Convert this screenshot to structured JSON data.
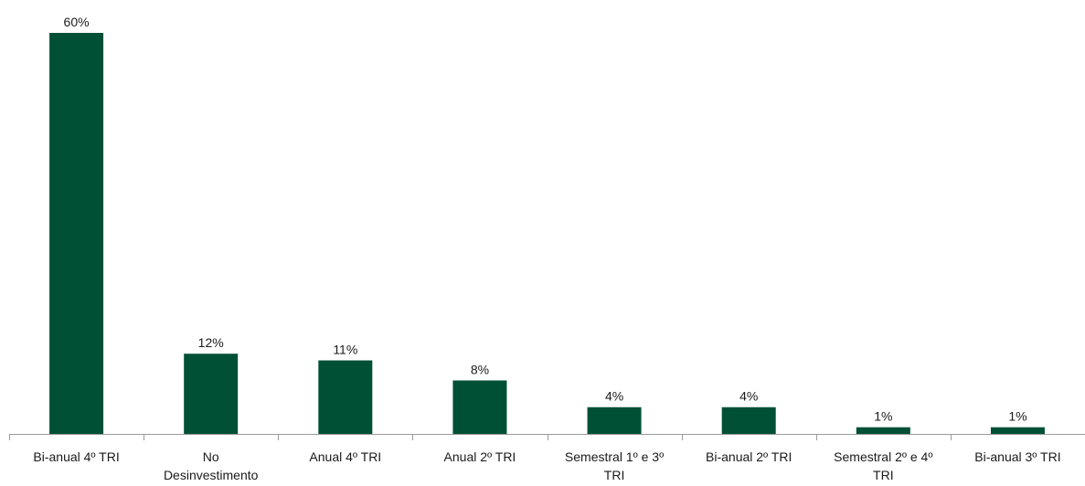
{
  "chart_data": {
    "type": "bar",
    "categories": [
      [
        "Bi-anual 4º TRI"
      ],
      [
        "No",
        "Desinvestimento"
      ],
      [
        "Anual 4º TRI"
      ],
      [
        "Anual 2º TRI"
      ],
      [
        "Semestral 1º e 3º",
        "TRI"
      ],
      [
        "Bi-anual 2º TRI"
      ],
      [
        "Semestral 2º e 4º",
        "TRI"
      ],
      [
        "Bi-anual 3º TRI"
      ]
    ],
    "values": [
      60,
      12,
      11,
      8,
      4,
      4,
      1,
      1
    ],
    "data_labels": [
      "60%",
      "12%",
      "11%",
      "8%",
      "4%",
      "4%",
      "1%",
      "1%"
    ],
    "ylim": [
      0,
      60
    ],
    "grid": false,
    "legend": "none",
    "bar_color": "#005036",
    "axis_color": "#9a9a9a"
  }
}
